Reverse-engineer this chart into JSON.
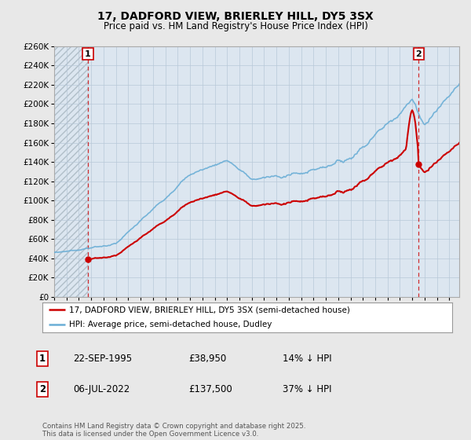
{
  "title": "17, DADFORD VIEW, BRIERLEY HILL, DY5 3SX",
  "subtitle": "Price paid vs. HM Land Registry's House Price Index (HPI)",
  "legend_line1": "17, DADFORD VIEW, BRIERLEY HILL, DY5 3SX (semi-detached house)",
  "legend_line2": "HPI: Average price, semi-detached house, Dudley",
  "annotation1_date": "22-SEP-1995",
  "annotation1_price": "£38,950",
  "annotation1_hpi": "14% ↓ HPI",
  "annotation2_date": "06-JUL-2022",
  "annotation2_price": "£137,500",
  "annotation2_hpi": "37% ↓ HPI",
  "footer": "Contains HM Land Registry data © Crown copyright and database right 2025.\nThis data is licensed under the Open Government Licence v3.0.",
  "hpi_color": "#6aaed6",
  "price_color": "#cc0000",
  "dashed_color": "#cc0000",
  "plot_bg_color": "#dce6f0",
  "fig_bg_color": "#e8e8e8",
  "grid_color": "#b8c8d8",
  "ylim": [
    0,
    260000
  ],
  "ytick_step": 20000,
  "sale1_x": 1995.73,
  "sale1_y": 38950,
  "sale2_x": 2022.51,
  "sale2_y": 137500,
  "xmin": 1993.0,
  "xmax": 2025.8
}
